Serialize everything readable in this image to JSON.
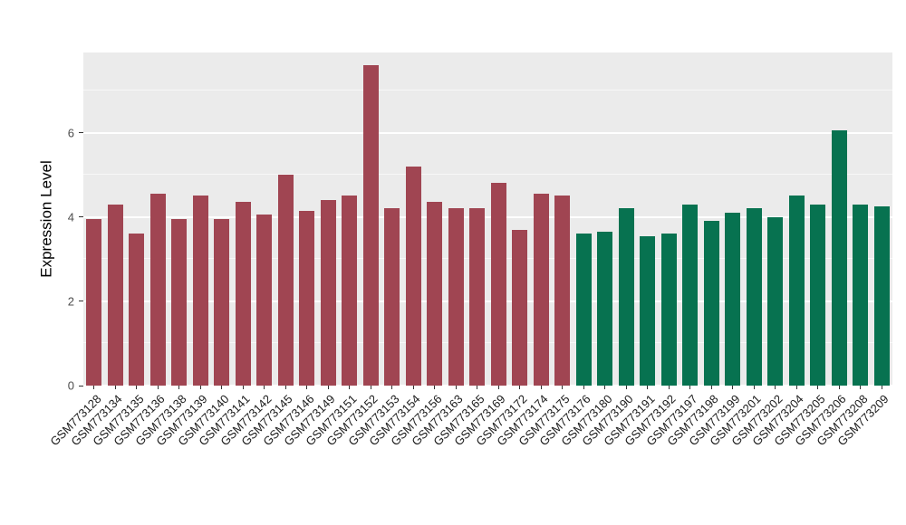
{
  "chart_data": {
    "type": "bar",
    "title": "",
    "xlabel": "",
    "ylabel": "Expression Level",
    "ylim": [
      0,
      7.9
    ],
    "yticks": [
      0,
      2,
      4,
      6
    ],
    "yticks_minor": [
      1,
      3,
      5,
      7
    ],
    "grid": true,
    "legend": "none",
    "panel_background": "#EBEBEB",
    "group_colors": [
      "#A04552",
      "#077250"
    ],
    "categories": [
      "GSM773128",
      "GSM773134",
      "GSM773135",
      "GSM773136",
      "GSM773138",
      "GSM773139",
      "GSM773140",
      "GSM773141",
      "GSM773142",
      "GSM773145",
      "GSM773146",
      "GSM773149",
      "GSM773151",
      "GSM773152",
      "GSM773153",
      "GSM773154",
      "GSM773156",
      "GSM773163",
      "GSM773165",
      "GSM773169",
      "GSM773172",
      "GSM773174",
      "GSM773175",
      "GSM773176",
      "GSM773180",
      "GSM773190",
      "GSM773191",
      "GSM773192",
      "GSM773197",
      "GSM773198",
      "GSM773199",
      "GSM773201",
      "GSM773202",
      "GSM773204",
      "GSM773205",
      "GSM773206",
      "GSM773208",
      "GSM773209"
    ],
    "values": [
      3.95,
      4.3,
      3.6,
      4.55,
      3.95,
      4.5,
      3.95,
      4.35,
      4.05,
      5.0,
      4.15,
      4.4,
      4.5,
      7.6,
      4.2,
      5.2,
      4.35,
      4.2,
      4.2,
      4.8,
      3.7,
      4.55,
      4.5,
      3.6,
      3.65,
      4.2,
      3.55,
      3.6,
      4.3,
      3.9,
      4.1,
      4.2,
      4.0,
      4.5,
      4.3,
      6.05,
      4.3,
      4.25
    ],
    "bar_groups": [
      0,
      0,
      0,
      0,
      0,
      0,
      0,
      0,
      0,
      0,
      0,
      0,
      0,
      0,
      0,
      0,
      0,
      0,
      0,
      0,
      0,
      0,
      0,
      1,
      1,
      1,
      1,
      1,
      1,
      1,
      1,
      1,
      1,
      1,
      1,
      1,
      1,
      1
    ]
  }
}
